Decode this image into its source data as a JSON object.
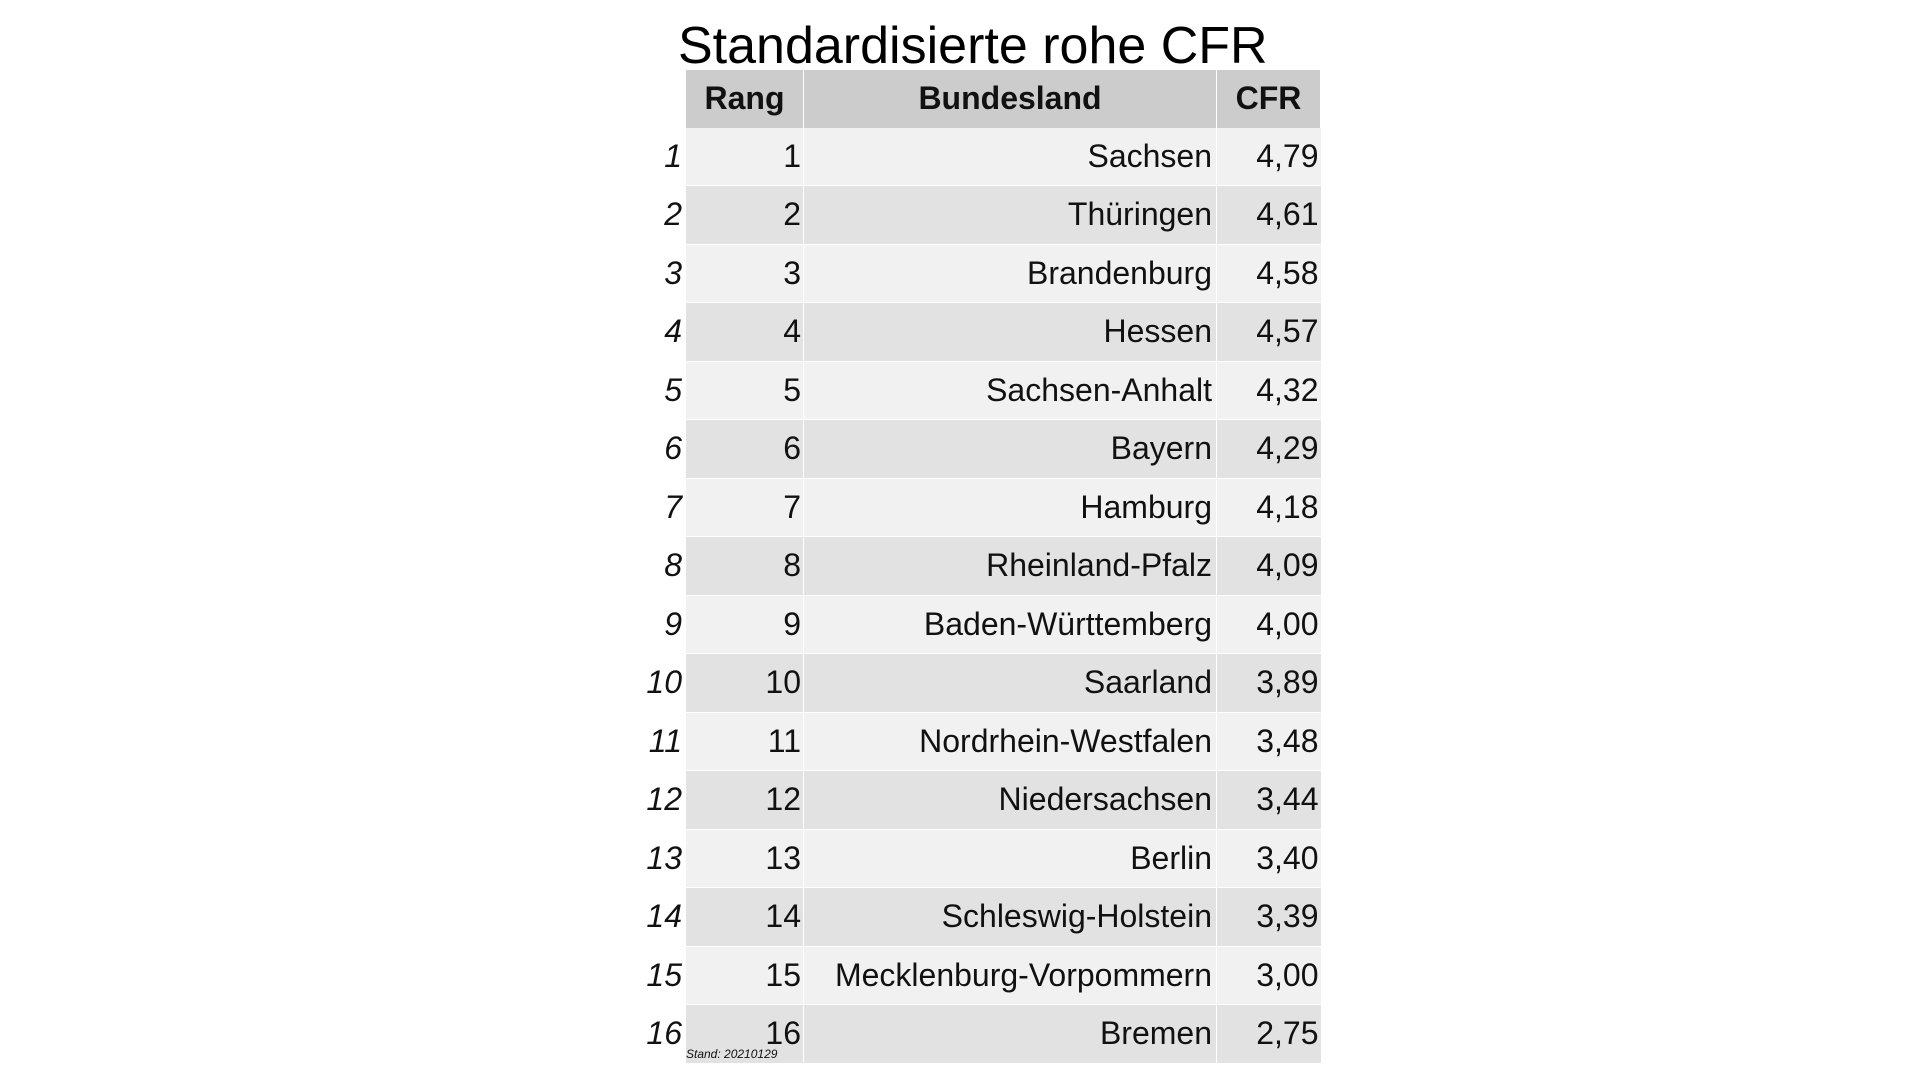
{
  "title": "Standardisierte rohe CFR",
  "note": "Stand: 20210129",
  "chart_data": {
    "type": "table",
    "title": "Standardisierte rohe CFR",
    "columns": [
      "Rang",
      "Bundesland",
      "CFR"
    ],
    "rows": [
      {
        "index": "1",
        "rank": "1",
        "state": "Sachsen",
        "cfr": "4,79"
      },
      {
        "index": "2",
        "rank": "2",
        "state": "Thüringen",
        "cfr": "4,61"
      },
      {
        "index": "3",
        "rank": "3",
        "state": "Brandenburg",
        "cfr": "4,58"
      },
      {
        "index": "4",
        "rank": "4",
        "state": "Hessen",
        "cfr": "4,57"
      },
      {
        "index": "5",
        "rank": "5",
        "state": "Sachsen-Anhalt",
        "cfr": "4,32"
      },
      {
        "index": "6",
        "rank": "6",
        "state": "Bayern",
        "cfr": "4,29"
      },
      {
        "index": "7",
        "rank": "7",
        "state": "Hamburg",
        "cfr": "4,18"
      },
      {
        "index": "8",
        "rank": "8",
        "state": "Rheinland-Pfalz",
        "cfr": "4,09"
      },
      {
        "index": "9",
        "rank": "9",
        "state": "Baden-Württemberg",
        "cfr": "4,00"
      },
      {
        "index": "10",
        "rank": "10",
        "state": "Saarland",
        "cfr": "3,89"
      },
      {
        "index": "11",
        "rank": "11",
        "state": "Nordrhein-Westfalen",
        "cfr": "3,48"
      },
      {
        "index": "12",
        "rank": "12",
        "state": "Niedersachsen",
        "cfr": "3,44"
      },
      {
        "index": "13",
        "rank": "13",
        "state": "Berlin",
        "cfr": "3,40"
      },
      {
        "index": "14",
        "rank": "14",
        "state": "Schleswig-Holstein",
        "cfr": "3,39"
      },
      {
        "index": "15",
        "rank": "15",
        "state": "Mecklenburg-Vorpommern",
        "cfr": "3,00"
      },
      {
        "index": "16",
        "rank": "16",
        "state": "Bremen",
        "cfr": "2,75"
      }
    ]
  }
}
